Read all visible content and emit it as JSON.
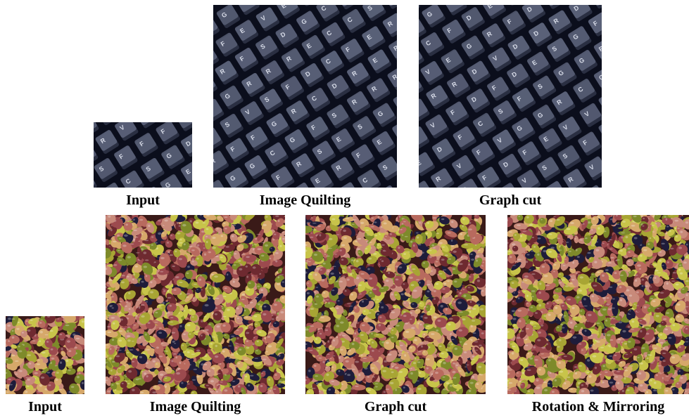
{
  "rows": [
    {
      "texture": "keyboard",
      "panels": [
        {
          "id": "kb-input",
          "caption": "Input",
          "seed": 11
        },
        {
          "id": "kb-quilting",
          "caption": "Image Quilting",
          "seed": 23
        },
        {
          "id": "kb-graphcut",
          "caption": "Graph cut",
          "seed": 37
        }
      ],
      "key_letters": [
        "E",
        "D",
        "S",
        "C",
        "V",
        "F",
        "R",
        "G"
      ]
    },
    {
      "texture": "olives",
      "panels": [
        {
          "id": "ol-input",
          "caption": "Input",
          "seed": 5
        },
        {
          "id": "ol-quilting",
          "caption": "Image Quilting",
          "seed": 17
        },
        {
          "id": "ol-graphcut",
          "caption": "Graph cut",
          "seed": 29
        },
        {
          "id": "ol-rotation",
          "caption": "Rotation & Mirroring",
          "seed": 41
        }
      ]
    }
  ],
  "colors": {
    "keyboard_bg": "#0b0e1c",
    "key_face": "#5a6178",
    "key_edge": "#2a2f42",
    "key_letter": "#d8dce8",
    "olive_bg": "#3a1a18",
    "olive_palette": [
      "#9c4a4e",
      "#b86a5e",
      "#a8a534",
      "#c8c44a",
      "#7e8a2a",
      "#d6a86a",
      "#6e2a30",
      "#1e1c3a",
      "#c88a7a"
    ]
  }
}
